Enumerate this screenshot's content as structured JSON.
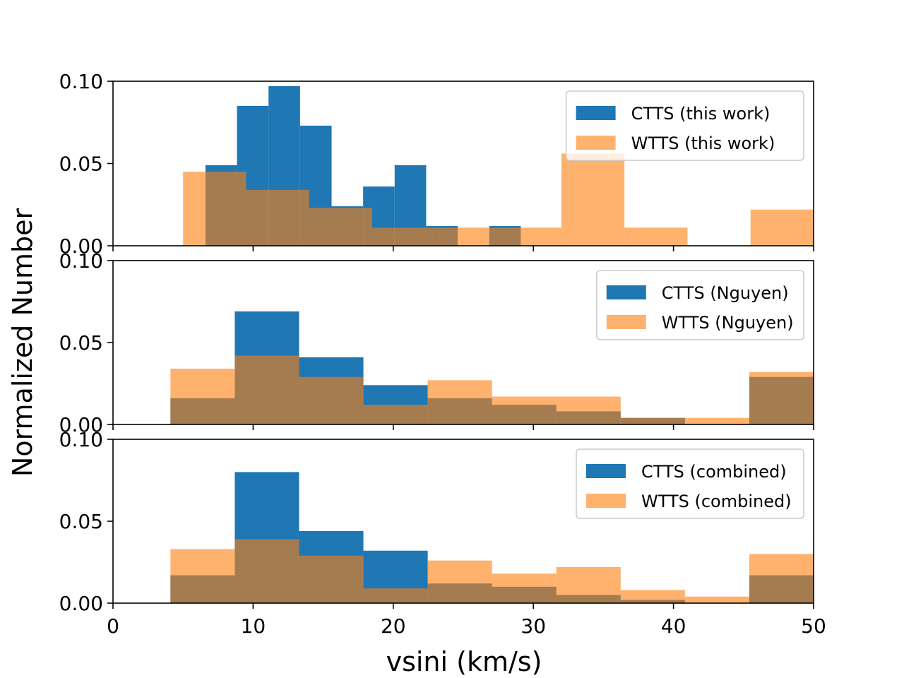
{
  "figure": {
    "xlabel": "vsini (km/s)",
    "ylabel": "Normalized Number",
    "xlim": [
      0,
      50
    ],
    "ylim": [
      0,
      0.1
    ],
    "xticks": [
      "0",
      "10",
      "20",
      "30",
      "40",
      "50"
    ],
    "yticks": [
      "0.00",
      "0.05",
      "0.10"
    ]
  },
  "colors": {
    "ctts": "#1f77b4",
    "wtts": "#ff7f0e",
    "wtts_alpha": 0.6
  },
  "chart_data": [
    {
      "type": "histogram",
      "panel": "top",
      "legend_position": "upper right",
      "ylim": [
        0,
        0.1
      ],
      "series": [
        {
          "name": "CTTS (this work)",
          "key": "ctts",
          "edges": [
            6.6,
            8.85,
            11.1,
            13.35,
            15.6,
            17.85,
            20.1,
            22.35,
            24.6,
            26.85,
            29.1
          ],
          "values": [
            0.049,
            0.085,
            0.097,
            0.073,
            0.024,
            0.036,
            0.049,
            0.012,
            0,
            0.012
          ]
        },
        {
          "name": "WTTS (this work)",
          "key": "wtts",
          "edges": [
            5.0,
            9.5,
            14.0,
            18.5,
            23.0,
            27.5,
            32.0,
            36.5,
            41.0,
            45.5,
            50.0
          ],
          "values": [
            0.045,
            0.034,
            0.023,
            0.011,
            0.011,
            0.011,
            0.056,
            0.011,
            0,
            0.022
          ]
        }
      ]
    },
    {
      "type": "histogram",
      "panel": "middle",
      "legend_position": "upper right",
      "ylim": [
        0,
        0.1
      ],
      "series": [
        {
          "name": "CTTS (Nguyen)",
          "key": "ctts",
          "edges": [
            4.1,
            8.69,
            13.28,
            17.87,
            22.46,
            27.05,
            31.64,
            36.23,
            40.82,
            45.41,
            50.0
          ],
          "values": [
            0.016,
            0.069,
            0.041,
            0.024,
            0.016,
            0.012,
            0.008,
            0.004,
            0,
            0.029
          ]
        },
        {
          "name": "WTTS (Nguyen)",
          "key": "wtts",
          "edges": [
            4.1,
            8.69,
            13.28,
            17.87,
            22.46,
            27.05,
            31.64,
            36.23,
            40.82,
            45.41,
            50.0
          ],
          "values": [
            0.034,
            0.042,
            0.029,
            0.012,
            0.027,
            0.017,
            0.017,
            0.004,
            0.004,
            0.032
          ]
        }
      ]
    },
    {
      "type": "histogram",
      "panel": "bottom",
      "legend_position": "upper right",
      "ylim": [
        0,
        0.1
      ],
      "series": [
        {
          "name": "CTTS (combined)",
          "key": "ctts",
          "edges": [
            4.1,
            8.69,
            13.28,
            17.87,
            22.46,
            27.05,
            31.64,
            36.23,
            40.82,
            45.41,
            50.0
          ],
          "values": [
            0.017,
            0.08,
            0.044,
            0.032,
            0.012,
            0.01,
            0.005,
            0.002,
            0,
            0.017
          ]
        },
        {
          "name": "WTTS (combined)",
          "key": "wtts",
          "edges": [
            4.1,
            8.69,
            13.28,
            17.87,
            22.46,
            27.05,
            31.64,
            36.23,
            40.82,
            45.41,
            50.0
          ],
          "values": [
            0.033,
            0.039,
            0.029,
            0.009,
            0.026,
            0.018,
            0.022,
            0.008,
            0.004,
            0.03
          ]
        }
      ]
    }
  ]
}
